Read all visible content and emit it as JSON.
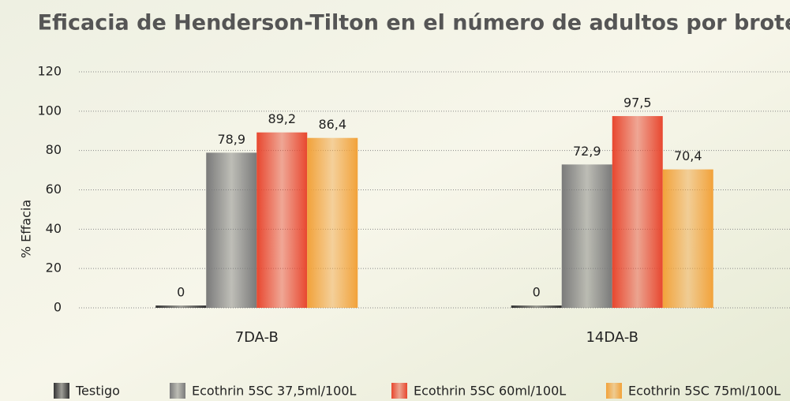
{
  "chart_data": {
    "type": "bar",
    "title": "Eficacia de Henderson-Tilton en el número de adultos por brote",
    "y_label": "% Effacia",
    "categories": [
      "7DA-B",
      "14DA-B"
    ],
    "series": [
      {
        "name": "Testigo",
        "color": "#333333",
        "values": [
          0,
          0
        ],
        "value_labels": [
          "0",
          "0"
        ]
      },
      {
        "name": "Ecothrin 5SC 37,5ml/100L",
        "color": "#7a7a7a",
        "values": [
          78.9,
          72.9
        ],
        "value_labels": [
          "78,9",
          "72,9"
        ]
      },
      {
        "name": "Ecothrin 5SC 60ml/100L",
        "color": "#e8472f",
        "values": [
          89.2,
          97.5
        ],
        "value_labels": [
          "89,2",
          "97,5"
        ]
      },
      {
        "name": "Ecothrin 5SC 75ml/100L",
        "color": "#f2a23a",
        "values": [
          86.4,
          70.4
        ],
        "value_labels": [
          "86,4",
          "70,4"
        ]
      }
    ],
    "ylim": [
      0,
      120
    ],
    "yticks": [
      0,
      20,
      40,
      60,
      80,
      100,
      120
    ],
    "grid": true
  }
}
